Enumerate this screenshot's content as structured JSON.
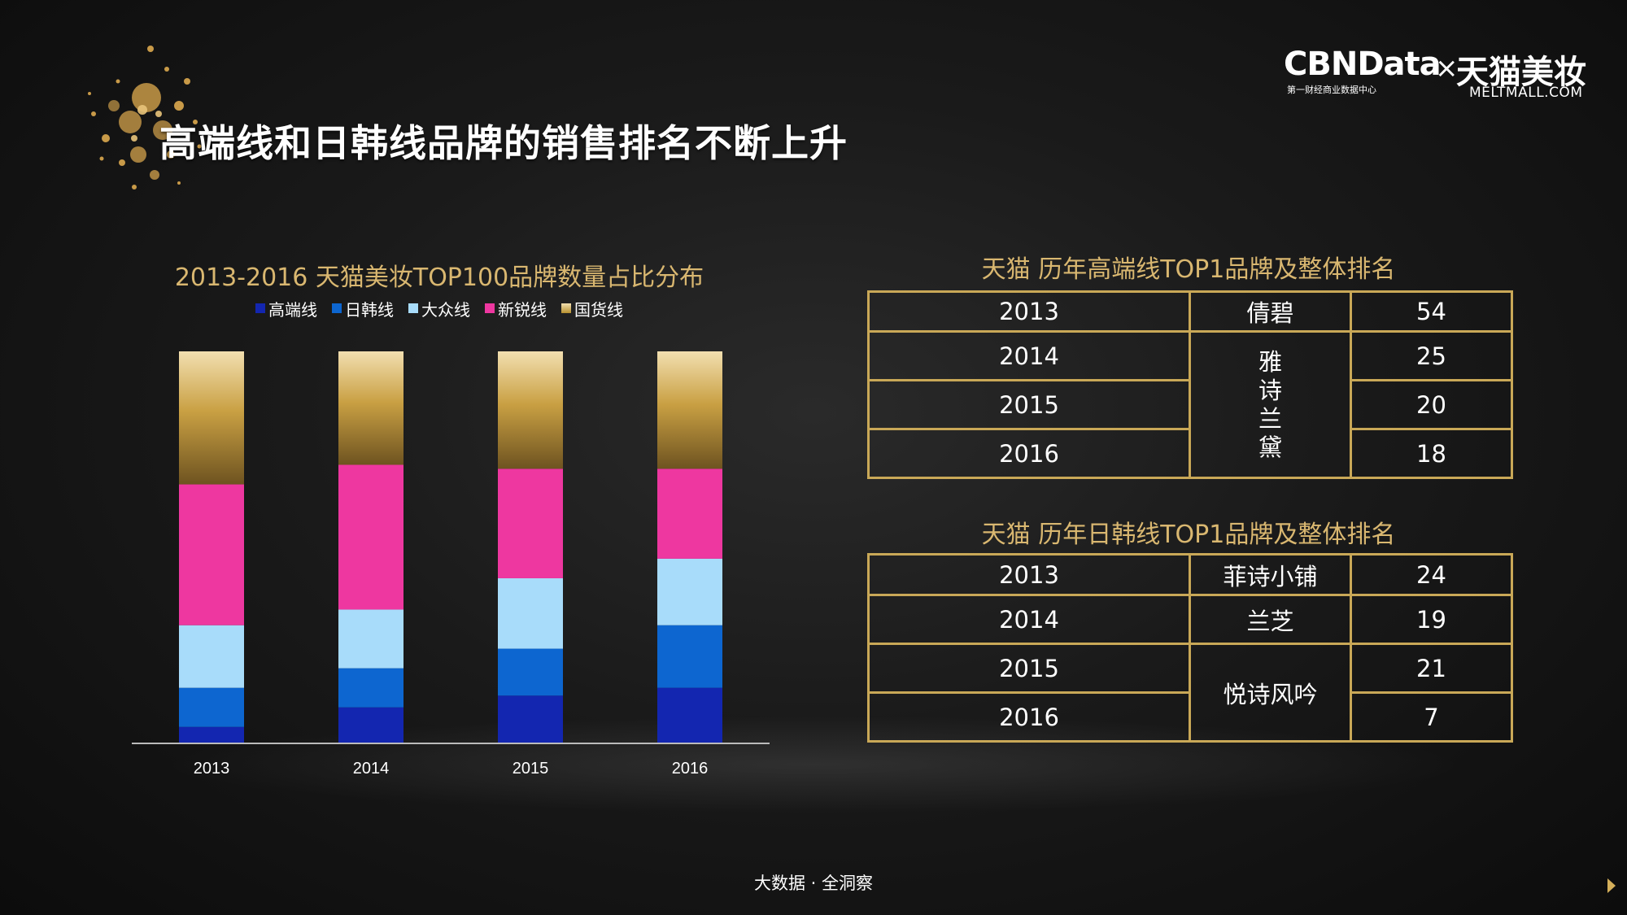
{
  "page": {
    "title": "高端线和日韩线品牌的销售排名不断上升",
    "footer": "大数据 · 全洞察"
  },
  "logo": {
    "brand": "CBNData",
    "cross": "×",
    "partner": "天猫美妆",
    "subtitle": "第一财经商业数据中心",
    "url": "MELTMALL.COM"
  },
  "chart_data": {
    "type": "bar",
    "stacked": true,
    "title": "2013-2016  天猫美妆TOP100品牌数量占比分布",
    "categories": [
      "2013",
      "2014",
      "2015",
      "2016"
    ],
    "ylim": [
      0,
      100
    ],
    "series": [
      {
        "name": "高端线",
        "color": "#1326b0",
        "values": [
          4,
          9,
          12,
          14
        ]
      },
      {
        "name": "日韩线",
        "color": "#0d66d0",
        "values": [
          10,
          10,
          12,
          16
        ]
      },
      {
        "name": "大众线",
        "color": "#a8dcfa",
        "values": [
          16,
          15,
          18,
          17
        ]
      },
      {
        "name": "新锐线",
        "color": "#ee37a0",
        "values": [
          36,
          37,
          28,
          23
        ]
      },
      {
        "name": "国货线",
        "color": "#b8912f",
        "values": [
          34,
          29,
          30,
          30
        ]
      }
    ]
  },
  "tables": [
    {
      "title": "天猫 历年高端线TOP1品牌及整体排名",
      "rows": [
        {
          "year": "2013",
          "brand": "倩碧",
          "rank": "54"
        },
        {
          "year": "2014",
          "brand": "雅诗兰黛",
          "rank": "25"
        },
        {
          "year": "2015",
          "rank": "20"
        },
        {
          "year": "2016",
          "rank": "18"
        }
      ]
    },
    {
      "title": "天猫 历年日韩线TOP1品牌及整体排名",
      "rows": [
        {
          "year": "2013",
          "brand": "菲诗小铺",
          "rank": "24"
        },
        {
          "year": "2014",
          "brand": "兰芝",
          "rank": "19"
        },
        {
          "year": "2015",
          "brand": "悦诗风吟",
          "rank": "21"
        },
        {
          "year": "2016",
          "rank": "7"
        }
      ]
    }
  ]
}
